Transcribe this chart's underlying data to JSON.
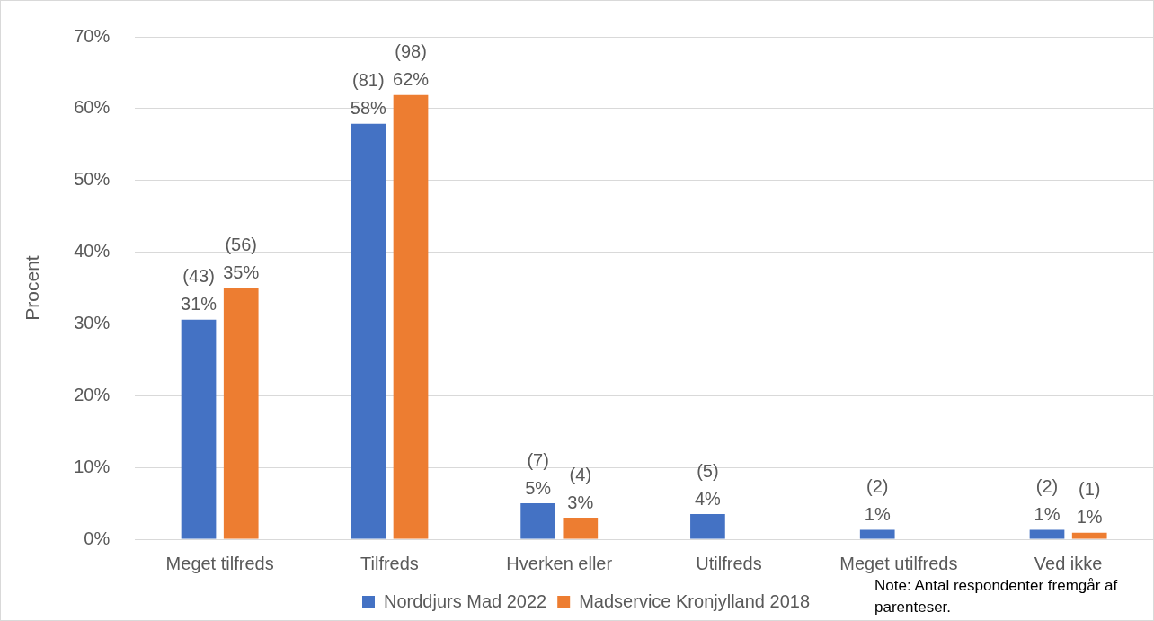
{
  "chart_data": {
    "type": "bar",
    "ylabel": "Procent",
    "categories": [
      "Meget tilfreds",
      "Tilfreds",
      "Hverken eller",
      "Utilfreds",
      "Meget utilfreds",
      "Ved ikke"
    ],
    "series": [
      {
        "name": "Norddjurs Mad 2022",
        "color": "#4472c4",
        "values": [
          30.6,
          57.9,
          5,
          3.5,
          1.3,
          1.3
        ],
        "value_labels": [
          "(43)\n31%",
          "(81)\n58%",
          "(7)\n5%",
          "(5)\n4%",
          "(2)\n1%",
          "(2)\n1%"
        ]
      },
      {
        "name": "Madservice Kronjylland 2018",
        "color": "#ed7d31",
        "values": [
          35,
          61.9,
          3,
          null,
          null,
          0.9
        ],
        "value_labels": [
          "(56)\n35%",
          "(98)\n62%",
          "(4)\n3%",
          null,
          null,
          "(1)\n1%"
        ]
      }
    ],
    "ylim": [
      0,
      70
    ],
    "yticks": [
      {
        "value": 0,
        "label": "0%"
      },
      {
        "value": 10,
        "label": "10%"
      },
      {
        "value": 20,
        "label": "20%"
      },
      {
        "value": 30,
        "label": "30%"
      },
      {
        "value": 40,
        "label": "40%"
      },
      {
        "value": 50,
        "label": "50%"
      },
      {
        "value": 60,
        "label": "60%"
      },
      {
        "value": 70,
        "label": "70%"
      }
    ],
    "grid": "y",
    "legend": "bottom",
    "annotations": [
      "Note: Antal respondenter fremgår af parenteser."
    ]
  }
}
